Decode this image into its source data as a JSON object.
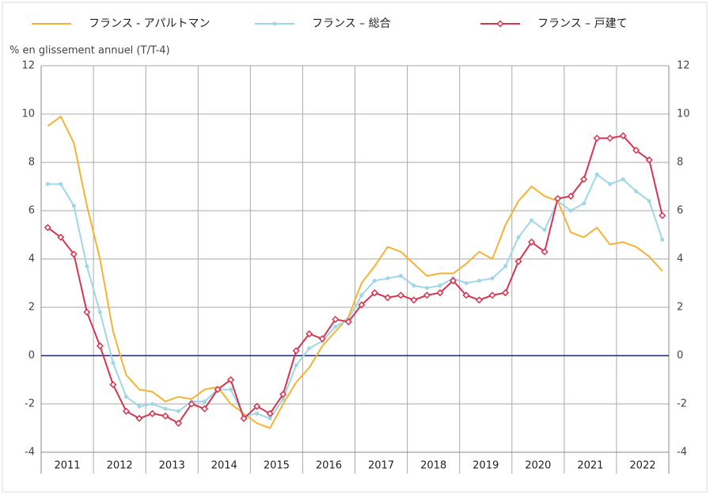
{
  "chart_data": {
    "type": "line",
    "y_axis_label": "% en glissement annuel (T/T-4)",
    "x": [
      2011.125,
      2011.375,
      2011.625,
      2011.875,
      2012.125,
      2012.375,
      2012.625,
      2012.875,
      2013.125,
      2013.375,
      2013.625,
      2013.875,
      2014.125,
      2014.375,
      2014.625,
      2014.875,
      2015.125,
      2015.375,
      2015.625,
      2015.875,
      2016.125,
      2016.375,
      2016.625,
      2016.875,
      2017.125,
      2017.375,
      2017.625,
      2017.875,
      2018.125,
      2018.375,
      2018.625,
      2018.875,
      2019.125,
      2019.375,
      2019.625,
      2019.875,
      2020.125,
      2020.375,
      2020.625,
      2020.875,
      2021.125,
      2021.375,
      2021.625,
      2021.875,
      2022.125,
      2022.375,
      2022.625,
      2022.875
    ],
    "xlim": [
      2011,
      2023
    ],
    "xticks": [
      {
        "value": 2011.5,
        "label": "2011"
      },
      {
        "value": 2012.5,
        "label": "2012"
      },
      {
        "value": 2013.5,
        "label": "2013"
      },
      {
        "value": 2014.5,
        "label": "2014"
      },
      {
        "value": 2015.5,
        "label": "2015"
      },
      {
        "value": 2016.5,
        "label": "2016"
      },
      {
        "value": 2017.5,
        "label": "2017"
      },
      {
        "value": 2018.5,
        "label": "2018"
      },
      {
        "value": 2019.5,
        "label": "2019"
      },
      {
        "value": 2020.5,
        "label": "2020"
      },
      {
        "value": 2021.5,
        "label": "2021"
      },
      {
        "value": 2022.5,
        "label": "2022"
      }
    ],
    "ylim": [
      -4,
      12
    ],
    "yticks": [
      -4,
      -2,
      0,
      2,
      4,
      6,
      8,
      10,
      12
    ],
    "grid": true,
    "zero_line_color": "#1a237e",
    "series": [
      {
        "name": "フランス - アパルトマン",
        "color": "#f5b335",
        "marker": false,
        "values": [
          9.5,
          9.9,
          8.8,
          6.2,
          4.0,
          1.0,
          -0.8,
          -1.4,
          -1.5,
          -1.9,
          -1.7,
          -1.8,
          -1.4,
          -1.3,
          -2.0,
          -2.4,
          -2.8,
          -3.0,
          -2.0,
          -1.1,
          -0.5,
          0.4,
          1.0,
          1.6,
          3.0,
          3.7,
          4.5,
          4.3,
          3.8,
          3.3,
          3.4,
          3.4,
          3.8,
          4.3,
          4.0,
          5.4,
          6.4,
          7.0,
          6.6,
          6.4,
          5.1,
          4.9,
          5.3,
          4.6,
          4.7,
          4.5,
          4.1,
          3.5
        ]
      },
      {
        "name": "フランス – 総合",
        "color": "#9fd6e8",
        "marker": "circle",
        "values": [
          7.1,
          7.1,
          6.2,
          3.7,
          1.8,
          -0.3,
          -1.7,
          -2.1,
          -2.0,
          -2.2,
          -2.3,
          -1.9,
          -1.9,
          -1.4,
          -1.4,
          -2.5,
          -2.4,
          -2.6,
          -1.8,
          -0.4,
          0.3,
          0.6,
          1.2,
          1.5,
          2.5,
          3.1,
          3.2,
          3.3,
          2.9,
          2.8,
          2.9,
          3.2,
          3.0,
          3.1,
          3.2,
          3.7,
          4.9,
          5.6,
          5.2,
          6.4,
          6.0,
          6.3,
          7.5,
          7.1,
          7.3,
          6.8,
          6.4,
          4.8
        ]
      },
      {
        "name": "フランス – 戸建て",
        "color": "#d6344f",
        "marker": "diamond",
        "values": [
          5.3,
          4.9,
          4.2,
          1.8,
          0.4,
          -1.2,
          -2.3,
          -2.6,
          -2.4,
          -2.5,
          -2.8,
          -2.0,
          -2.2,
          -1.4,
          -1.0,
          -2.6,
          -2.1,
          -2.4,
          -1.6,
          0.2,
          0.9,
          0.7,
          1.5,
          1.4,
          2.1,
          2.6,
          2.4,
          2.5,
          2.3,
          2.5,
          2.6,
          3.1,
          2.5,
          2.3,
          2.5,
          2.6,
          3.9,
          4.7,
          4.3,
          6.5,
          6.6,
          7.3,
          9.0,
          9.0,
          9.1,
          8.5,
          8.1,
          5.8
        ]
      }
    ]
  }
}
